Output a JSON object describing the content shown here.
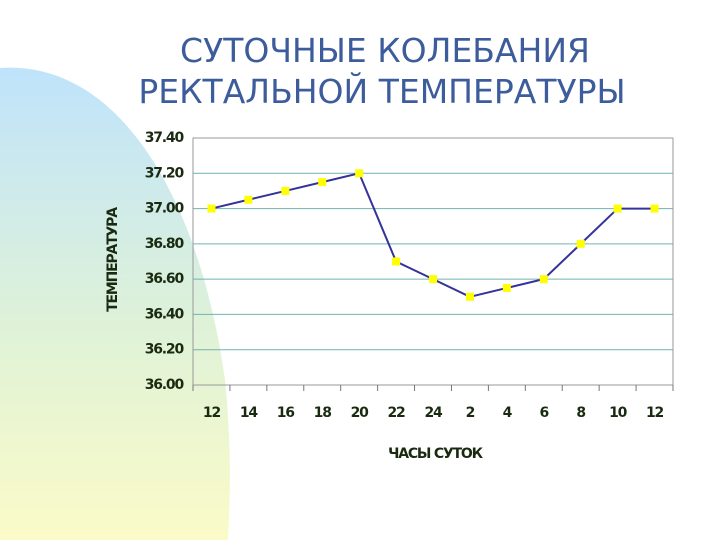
{
  "chart_data": {
    "type": "line",
    "title": [
      "СУТОЧНЫЕ КОЛЕБАНИЯ",
      "РЕКТАЛЬНОЙ ТЕМПЕРАТУРЫ"
    ],
    "x_label": "ЧАСЫ СУТОК",
    "y_label": "ТЕМПЕРАТУРА",
    "categories": [
      "12",
      "14",
      "16",
      "18",
      "20",
      "22",
      "24",
      "2",
      "4",
      "6",
      "8",
      "10",
      "12"
    ],
    "values": [
      37.0,
      37.05,
      37.1,
      37.15,
      37.2,
      36.7,
      36.6,
      36.5,
      36.55,
      36.6,
      36.8,
      37.0,
      37.0
    ],
    "color": "#333399",
    "marker_color": "#ffff00",
    "ylim": [
      36.0,
      37.4
    ],
    "yticks": [
      {
        "value": 36.0,
        "label": "36.00"
      },
      {
        "value": 36.2,
        "label": "36.20"
      },
      {
        "value": 36.4,
        "label": "36.40"
      },
      {
        "value": 36.6,
        "label": "36.60"
      },
      {
        "value": 36.8,
        "label": "36.80"
      },
      {
        "value": 37.0,
        "label": "37.00"
      },
      {
        "value": 37.2,
        "label": "37.20"
      },
      {
        "value": 37.4,
        "label": "37.40"
      }
    ],
    "grid": true
  }
}
